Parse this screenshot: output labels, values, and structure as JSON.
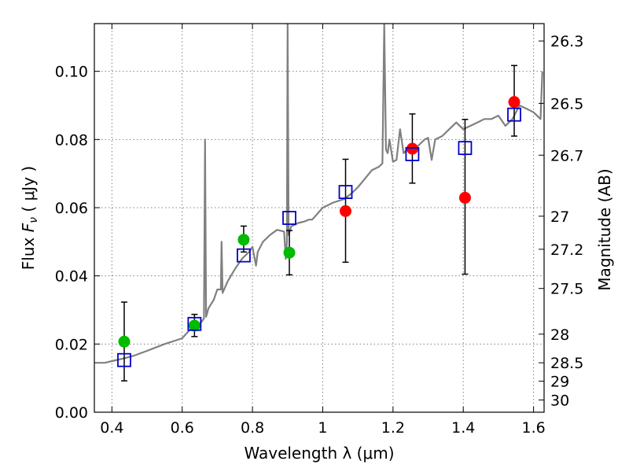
{
  "chart_data": {
    "type": "scatter",
    "title": "",
    "xlabel": "Wavelength  λ (μm)",
    "ylabel": "Flux  F_ν  ( μJy )",
    "y2label": "Magnitude (AB)",
    "xlim": [
      0.35,
      1.63
    ],
    "ylim": [
      0.0,
      0.114
    ],
    "grid": true,
    "x_ticks": [
      0.4,
      0.6,
      0.8,
      1.0,
      1.2,
      1.4,
      1.6
    ],
    "x_tick_labels": [
      "0.4",
      "0.6",
      "0.8",
      "1",
      "1.2",
      "1.4",
      "1.6"
    ],
    "y_ticks": [
      0.0,
      0.02,
      0.04,
      0.06,
      0.08,
      0.1
    ],
    "y_tick_labels": [
      "0.00",
      "0.02",
      "0.04",
      "0.06",
      "0.08",
      "0.10"
    ],
    "y2_ticks": [
      {
        "label": "26.3",
        "flux": 0.1089
      },
      {
        "label": "26.5",
        "flux": 0.0906
      },
      {
        "label": "26.7",
        "flux": 0.0754
      },
      {
        "label": "27",
        "flux": 0.0575
      },
      {
        "label": "27.2",
        "flux": 0.0478
      },
      {
        "label": "27.5",
        "flux": 0.0363
      },
      {
        "label": "28",
        "flux": 0.0229
      },
      {
        "label": "28.5",
        "flux": 0.0145
      },
      {
        "label": "29",
        "flux": 0.0091
      },
      {
        "label": "30",
        "flux": 0.0036
      }
    ],
    "colors": {
      "model": "#808080",
      "green": "#00bb00",
      "red": "#ff0000",
      "square": "#0000cc",
      "errorbar": "#000000",
      "grid": "#808080"
    },
    "series": [
      {
        "marker": "green-circle",
        "points": [
          {
            "x": 0.435,
            "y": 0.0207,
            "yerr": [
              0.0115,
              0.0116
            ]
          },
          {
            "x": 0.635,
            "y": 0.0254,
            "yerr": [
              0.0032,
              0.0033
            ]
          },
          {
            "x": 0.775,
            "y": 0.0506,
            "yerr": [
              0.0036,
              0.004
            ]
          },
          {
            "x": 0.905,
            "y": 0.0468,
            "yerr": [
              0.0065,
              0.0065
            ]
          }
        ]
      },
      {
        "marker": "red-circle",
        "points": [
          {
            "x": 1.065,
            "y": 0.059,
            "yerr": [
              0.015,
              0.0152
            ]
          },
          {
            "x": 1.255,
            "y": 0.0773,
            "yerr": [
              0.0101,
              0.0102
            ]
          },
          {
            "x": 1.405,
            "y": 0.0629,
            "yerr": [
              0.0224,
              0.023
            ]
          },
          {
            "x": 1.545,
            "y": 0.091,
            "yerr": [
              0.01,
              0.0107
            ]
          }
        ]
      },
      {
        "marker": "blue-open-square",
        "points": [
          {
            "x": 0.435,
            "y": 0.0153
          },
          {
            "x": 0.635,
            "y": 0.0259
          },
          {
            "x": 0.775,
            "y": 0.046
          },
          {
            "x": 0.905,
            "y": 0.057
          },
          {
            "x": 1.065,
            "y": 0.0646
          },
          {
            "x": 1.255,
            "y": 0.0757
          },
          {
            "x": 1.405,
            "y": 0.0775
          },
          {
            "x": 1.545,
            "y": 0.0873
          }
        ]
      },
      {
        "marker": "model-spectrum-line",
        "points": [
          [
            0.35,
            0.0145
          ],
          [
            0.38,
            0.0145
          ],
          [
            0.4,
            0.015
          ],
          [
            0.43,
            0.0157
          ],
          [
            0.46,
            0.0165
          ],
          [
            0.5,
            0.018
          ],
          [
            0.55,
            0.02
          ],
          [
            0.58,
            0.021
          ],
          [
            0.6,
            0.0217
          ],
          [
            0.62,
            0.024
          ],
          [
            0.64,
            0.025
          ],
          [
            0.655,
            0.0265
          ],
          [
            0.662,
            0.0275
          ],
          [
            0.665,
            0.08
          ],
          [
            0.668,
            0.028
          ],
          [
            0.675,
            0.0305
          ],
          [
            0.69,
            0.033
          ],
          [
            0.7,
            0.036
          ],
          [
            0.71,
            0.036
          ],
          [
            0.712,
            0.05
          ],
          [
            0.715,
            0.035
          ],
          [
            0.73,
            0.0385
          ],
          [
            0.75,
            0.042
          ],
          [
            0.77,
            0.045
          ],
          [
            0.79,
            0.047
          ],
          [
            0.8,
            0.0485
          ],
          [
            0.81,
            0.043
          ],
          [
            0.815,
            0.047
          ],
          [
            0.83,
            0.05
          ],
          [
            0.85,
            0.052
          ],
          [
            0.87,
            0.0535
          ],
          [
            0.89,
            0.053
          ],
          [
            0.895,
            0.045
          ],
          [
            0.898,
            0.05
          ],
          [
            0.9,
            0.114
          ],
          [
            0.903,
            0.052
          ],
          [
            0.91,
            0.0545
          ],
          [
            0.92,
            0.055
          ],
          [
            0.93,
            0.0555
          ],
          [
            0.95,
            0.056
          ],
          [
            0.96,
            0.0565
          ],
          [
            0.97,
            0.0565
          ],
          [
            1.0,
            0.06
          ],
          [
            1.03,
            0.0615
          ],
          [
            1.06,
            0.0625
          ],
          [
            1.08,
            0.064
          ],
          [
            1.1,
            0.066
          ],
          [
            1.12,
            0.0685
          ],
          [
            1.14,
            0.071
          ],
          [
            1.16,
            0.072
          ],
          [
            1.17,
            0.073
          ],
          [
            1.175,
            0.114
          ],
          [
            1.18,
            0.077
          ],
          [
            1.185,
            0.076
          ],
          [
            1.19,
            0.08
          ],
          [
            1.2,
            0.0735
          ],
          [
            1.21,
            0.074
          ],
          [
            1.22,
            0.083
          ],
          [
            1.23,
            0.076
          ],
          [
            1.25,
            0.078
          ],
          [
            1.27,
            0.078
          ],
          [
            1.29,
            0.08
          ],
          [
            1.3,
            0.0805
          ],
          [
            1.31,
            0.074
          ],
          [
            1.32,
            0.08
          ],
          [
            1.34,
            0.081
          ],
          [
            1.36,
            0.083
          ],
          [
            1.38,
            0.085
          ],
          [
            1.4,
            0.083
          ],
          [
            1.42,
            0.084
          ],
          [
            1.44,
            0.085
          ],
          [
            1.46,
            0.086
          ],
          [
            1.48,
            0.086
          ],
          [
            1.5,
            0.087
          ],
          [
            1.52,
            0.084
          ],
          [
            1.54,
            0.086
          ],
          [
            1.56,
            0.09
          ],
          [
            1.58,
            0.089
          ],
          [
            1.6,
            0.088
          ],
          [
            1.62,
            0.086
          ],
          [
            1.625,
            0.1
          ]
        ]
      }
    ]
  }
}
